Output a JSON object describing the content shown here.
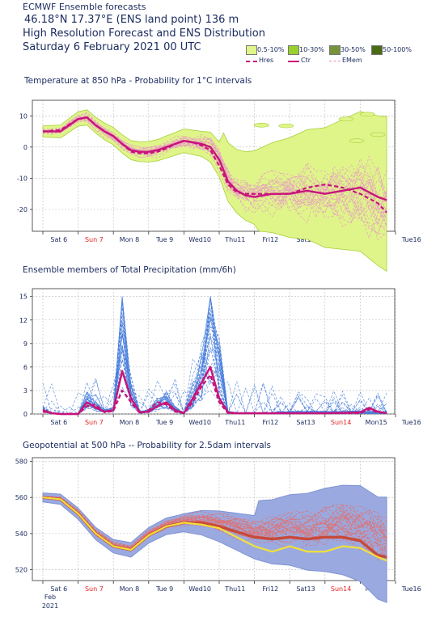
{
  "header": {
    "line1": "ECMWF Ensemble forecasts",
    "line2": "46.18°N 17.37°E (ENS land point) 136 m",
    "line3": "High Resolution Forecast and ENS Distribution",
    "line4": "Saturday  6 February 2021 00 UTC"
  },
  "legend": {
    "prob_items": [
      {
        "label": "0.5-10%",
        "color": "#dff58a"
      },
      {
        "label": "10-30%",
        "color": "#99d12c"
      },
      {
        "label": "30-50%",
        "color": "#76923a"
      },
      {
        "label": "50-100%",
        "color": "#4a6a16"
      }
    ],
    "line_items": [
      {
        "label": "Hres",
        "color": "#c8137a",
        "style": "dashed"
      },
      {
        "label": "Ctr",
        "color": "#c8137a",
        "style": "solid"
      },
      {
        "label": "EMem",
        "color": "#e08ab0",
        "style": "dashed"
      }
    ]
  },
  "colors": {
    "axis_day_label": "#1a2a5e",
    "axis_sunday_label": "#e02020",
    "ctrl": "#c8137a",
    "temp_band": "#dff58a",
    "precip_members": "#4a7fdc",
    "geo_band": "#9aaae0",
    "geo_members": "#e07070",
    "geo_hres": "#f2e03a"
  },
  "x_axis": {
    "ticks": [
      "Sat 6",
      "Sun 7",
      "Mon 8",
      "Tue 9",
      "Wed10",
      "Thu11",
      "Fri12",
      "Sat13",
      "Sun14",
      "Mon15",
      "Tue16"
    ],
    "sunday_ticks": [
      "Sun 7",
      "Sun14"
    ],
    "start_extra": [
      "Feb",
      "2021"
    ]
  },
  "chart_data": [
    {
      "type": "line",
      "title": "Temperature at 850 hPa - Probability for 1°C intervals",
      "yticks": [
        -20,
        -10,
        0,
        10
      ],
      "ylim": [
        -27,
        15
      ],
      "x_unit": "days from Sat 6 00 UTC",
      "series": [
        {
          "name": "Ctr",
          "x": [
            0,
            0.5,
            1,
            1.25,
            1.5,
            1.75,
            2,
            2.25,
            2.5,
            2.75,
            3,
            3.25,
            3.5,
            3.75,
            4,
            4.25,
            4.5,
            4.75,
            5,
            5.25,
            5.5,
            5.75,
            6,
            6.5,
            7,
            7.5,
            8,
            8.5,
            9,
            9.5,
            9.75
          ],
          "values": [
            5,
            5,
            9,
            9.5,
            7,
            5,
            3.5,
            1,
            -1,
            -1.5,
            -1.5,
            -1,
            0,
            1,
            2,
            1.5,
            1,
            0,
            -4,
            -11,
            -14,
            -15.5,
            -16,
            -15,
            -15,
            -14,
            -15,
            -14,
            -13,
            -16,
            -17
          ]
        },
        {
          "name": "Hres",
          "x": [
            0,
            0.5,
            1,
            1.25,
            1.5,
            1.75,
            2,
            2.25,
            2.5,
            2.75,
            3,
            3.25,
            3.5,
            3.75,
            4,
            4.25,
            4.5,
            4.75,
            5,
            5.25,
            5.5,
            5.75,
            6,
            6.5,
            7,
            7.5,
            8,
            8.5,
            9,
            9.5,
            9.75
          ],
          "values": [
            5,
            5.5,
            9,
            9.5,
            7,
            5,
            3.5,
            1,
            -1.5,
            -2,
            -2,
            -1.5,
            -0.5,
            1,
            2,
            1.5,
            0.5,
            -1,
            -6,
            -12,
            -14.5,
            -15,
            -15,
            -15,
            -15,
            -13,
            -12,
            -13,
            -15,
            -18,
            -21
          ]
        }
      ]
    },
    {
      "type": "line",
      "title": "Ensemble members of Total Precipitation (mm/6h)",
      "yticks": [
        0,
        3,
        6,
        9,
        12,
        15
      ],
      "ylim": [
        0,
        16
      ],
      "x_unit": "days from Sat 6 00 UTC",
      "series": [
        {
          "name": "Ctr",
          "x": [
            0,
            0.25,
            0.5,
            1,
            1.25,
            1.5,
            1.75,
            2,
            2.25,
            2.5,
            2.75,
            3,
            3.25,
            3.5,
            3.75,
            4,
            4.25,
            4.5,
            4.75,
            5,
            5.25,
            5.5,
            6,
            7,
            8,
            9,
            9.25,
            9.5,
            9.75
          ],
          "values": [
            0.5,
            0.1,
            0,
            0,
            1.5,
            0.8,
            0.3,
            0.5,
            5.5,
            2,
            0.2,
            0.3,
            1,
            1.5,
            0.5,
            0.1,
            2,
            4,
            6,
            2,
            0.2,
            0.1,
            0.1,
            0.1,
            0.1,
            0.2,
            0.8,
            0.3,
            0.1
          ]
        },
        {
          "name": "Hres",
          "x": [
            0,
            0.25,
            0.5,
            1,
            1.25,
            1.5,
            1.75,
            2,
            2.25,
            2.5,
            2.75,
            3,
            3.25,
            3.5,
            3.75,
            4,
            4.25,
            4.5,
            4.75,
            5,
            5.25,
            5.5,
            6,
            7,
            8,
            9,
            9.25,
            9.5,
            9.75
          ],
          "values": [
            0.3,
            0.1,
            0,
            0,
            1,
            1.2,
            0.2,
            0.4,
            3,
            1.5,
            0.1,
            0.5,
            1.5,
            1.2,
            0.3,
            0.1,
            1.5,
            3.5,
            5,
            1.5,
            0.1,
            0.1,
            0.1,
            0.1,
            0.1,
            0.1,
            0.6,
            0.2,
            0.1
          ]
        }
      ]
    },
    {
      "type": "line",
      "title": "Geopotential at 500 hPa -- Probability for 2.5dam intervals",
      "yticks": [
        520,
        540,
        560,
        580
      ],
      "ylim": [
        514,
        582
      ],
      "x_unit": "days from Sat 6 00 UTC",
      "series": [
        {
          "name": "Ctr",
          "x": [
            0,
            0.5,
            1,
            1.5,
            2,
            2.5,
            3,
            3.5,
            4,
            4.5,
            5,
            5.5,
            6,
            6.5,
            7,
            7.5,
            8,
            8.5,
            9,
            9.5,
            9.75
          ],
          "values": [
            560,
            559,
            551,
            540,
            533,
            531,
            539,
            544,
            546,
            546,
            544,
            541,
            538,
            537,
            538,
            537,
            538,
            538,
            536,
            528,
            527
          ]
        },
        {
          "name": "Hres",
          "x": [
            0,
            0.5,
            1,
            1.5,
            2,
            2.5,
            3,
            3.5,
            4,
            4.5,
            5,
            5.5,
            6,
            6.5,
            7,
            7.5,
            8,
            8.5,
            9,
            9.5,
            9.75
          ],
          "values": [
            560,
            559,
            551,
            540,
            533,
            531,
            539,
            544,
            546,
            545,
            543,
            538,
            533,
            530,
            533,
            530,
            530,
            533,
            532,
            527,
            525
          ]
        }
      ]
    }
  ]
}
